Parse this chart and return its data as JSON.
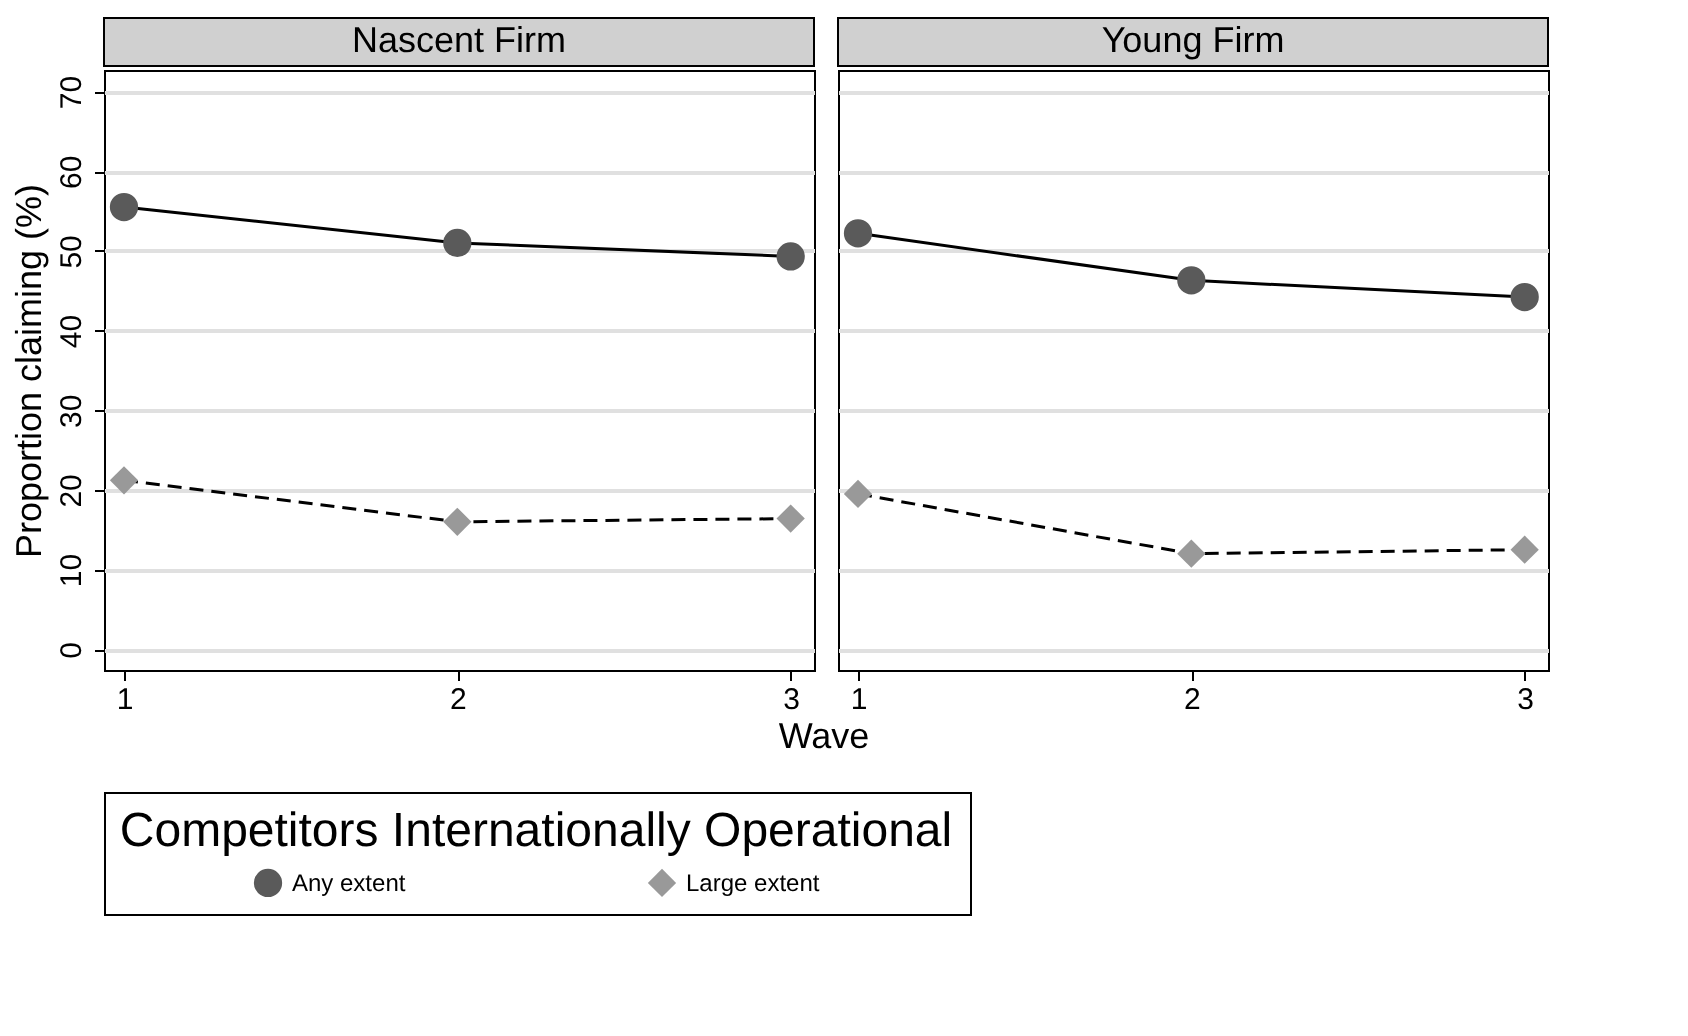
{
  "chart_data": [
    {
      "type": "line",
      "title": "Nascent Firm",
      "xlabel": "Wave",
      "ylabel": "Proportion claiming (%)",
      "legend_title": "Competitors Internationally Operational",
      "legend": "bottom",
      "grid": "y",
      "x": [
        1,
        2,
        3
      ],
      "xlim": [
        0.94,
        3.07
      ],
      "xticks": [
        1,
        2,
        3
      ],
      "ylim": [
        -2.6,
        72.7
      ],
      "yticks": [
        0,
        10,
        20,
        30,
        40,
        50,
        60,
        70
      ],
      "series": [
        {
          "name": "Any extent",
          "color": "#5a5a5a",
          "marker": "circle",
          "line_style": "solid",
          "values": [
            55.5,
            51.0,
            49.3
          ]
        },
        {
          "name": "Large extent",
          "color": "#999999",
          "marker": "diamond",
          "line_style": "dashed",
          "values": [
            21.2,
            16.0,
            16.4
          ]
        }
      ]
    },
    {
      "type": "line",
      "title": "Young Firm",
      "grid": "y",
      "tick_labels": "x",
      "x": [
        1,
        2,
        3
      ],
      "xlim": [
        0.94,
        3.07
      ],
      "xticks": [
        1,
        2,
        3
      ],
      "ylim": [
        -2.6,
        72.7
      ],
      "yticks": [
        0,
        10,
        20,
        30,
        40,
        50,
        60,
        70
      ],
      "series": [
        {
          "name": "Any extent",
          "color": "#5a5a5a",
          "marker": "circle",
          "line_style": "solid",
          "values": [
            52.2,
            46.3,
            44.2
          ]
        },
        {
          "name": "Large extent",
          "color": "#999999",
          "marker": "diamond",
          "line_style": "dashed",
          "values": [
            19.5,
            12.0,
            12.5
          ]
        }
      ]
    }
  ]
}
